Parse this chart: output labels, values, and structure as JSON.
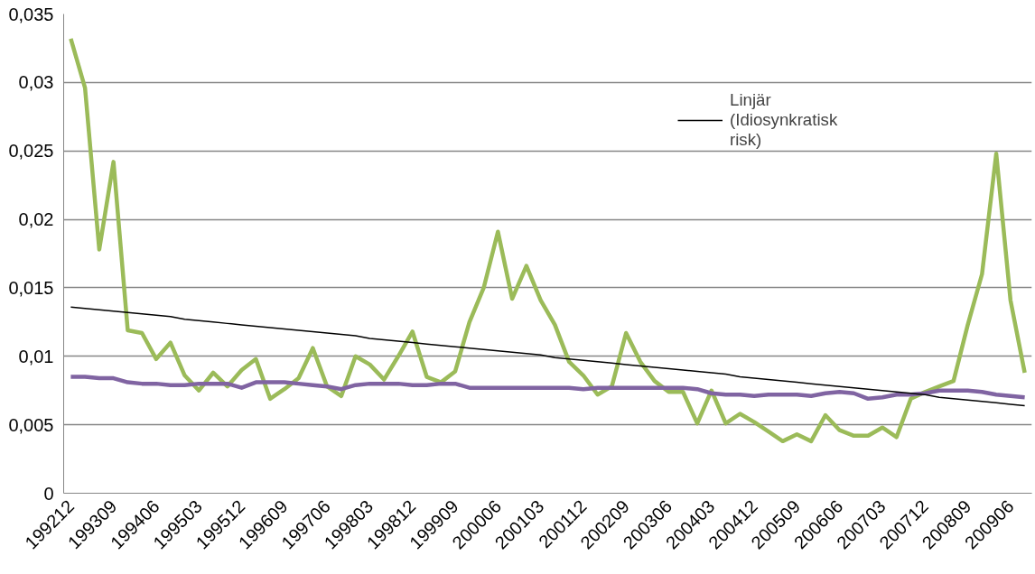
{
  "chart_data": {
    "type": "line",
    "categories": [
      "199212",
      null,
      null,
      "199309",
      null,
      null,
      "199406",
      null,
      null,
      "199503",
      null,
      null,
      "199512",
      null,
      null,
      "199609",
      null,
      null,
      "199706",
      null,
      null,
      "199803",
      null,
      null,
      "199812",
      null,
      null,
      "199909",
      null,
      null,
      "200006",
      null,
      null,
      "200103",
      null,
      null,
      "200112",
      null,
      null,
      "200209",
      null,
      null,
      "200306",
      null,
      null,
      "200403",
      null,
      null,
      "200412",
      null,
      null,
      "200509",
      null,
      null,
      "200606",
      null,
      null,
      "200703",
      null,
      null,
      "200712",
      null,
      null,
      "200809",
      null,
      null,
      "200906",
      null
    ],
    "series": [
      {
        "color": "#9bbb59",
        "values": [
          0.0332,
          0.0296,
          0.0178,
          0.0242,
          0.0119,
          0.0117,
          0.0098,
          0.011,
          0.0086,
          0.0075,
          0.0088,
          0.0078,
          0.009,
          0.0098,
          0.0069,
          0.0076,
          0.0084,
          0.0106,
          0.0078,
          0.0071,
          0.01,
          0.0094,
          0.0083,
          0.01,
          0.0118,
          0.0085,
          0.0081,
          0.0089,
          0.0125,
          0.015,
          0.0191,
          0.0142,
          0.0166,
          0.0141,
          0.0123,
          0.0096,
          0.0086,
          0.0072,
          0.0078,
          0.0117,
          0.0096,
          0.0082,
          0.0074,
          0.0074,
          0.0051,
          0.0075,
          0.0051,
          0.0058,
          0.0052,
          0.0045,
          0.0038,
          0.0043,
          0.0038,
          0.0057,
          0.0046,
          0.0042,
          0.0042,
          0.0048,
          0.0041,
          0.0069,
          0.0074,
          0.0078,
          0.0082,
          0.0123,
          0.016,
          0.0248,
          0.0141,
          0.0088
        ]
      },
      {
        "color": "#8064a2",
        "values": [
          0.0085,
          0.0085,
          0.0084,
          0.0084,
          0.0081,
          0.008,
          0.008,
          0.0079,
          0.0079,
          0.008,
          0.008,
          0.008,
          0.0077,
          0.0081,
          0.0081,
          0.0081,
          0.008,
          0.0079,
          0.0078,
          0.0076,
          0.0079,
          0.008,
          0.008,
          0.008,
          0.0079,
          0.0079,
          0.008,
          0.008,
          0.0077,
          0.0077,
          0.0077,
          0.0077,
          0.0077,
          0.0077,
          0.0077,
          0.0077,
          0.0076,
          0.0077,
          0.0077,
          0.0077,
          0.0077,
          0.0077,
          0.0077,
          0.0077,
          0.0076,
          0.0073,
          0.0072,
          0.0072,
          0.0071,
          0.0072,
          0.0072,
          0.0072,
          0.0071,
          0.0073,
          0.0074,
          0.0073,
          0.0069,
          0.007,
          0.0072,
          0.0072,
          0.0073,
          0.0075,
          0.0075,
          0.0075,
          0.0074,
          0.0072,
          0.0071,
          0.007
        ]
      },
      {
        "name": "Linjär (Idiosynkratisk risk)",
        "color": "#000000",
        "values": [
          0.0136,
          0.0135,
          0.0134,
          0.0133,
          0.0132,
          0.0131,
          0.013,
          0.0129,
          0.0127,
          0.0126,
          0.0125,
          0.0124,
          0.0123,
          0.0122,
          0.0121,
          0.012,
          0.0119,
          0.0118,
          0.0117,
          0.0116,
          0.0115,
          0.0113,
          0.0112,
          0.0111,
          0.011,
          0.0109,
          0.0108,
          0.0107,
          0.0106,
          0.0105,
          0.0104,
          0.0103,
          0.0102,
          0.0101,
          0.0099,
          0.0098,
          0.0097,
          0.0096,
          0.0095,
          0.0094,
          0.0093,
          0.0092,
          0.0091,
          0.009,
          0.0089,
          0.0088,
          0.0087,
          0.0085,
          0.0084,
          0.0083,
          0.0082,
          0.0081,
          0.008,
          0.0079,
          0.0078,
          0.0077,
          0.0076,
          0.0075,
          0.0074,
          0.0073,
          0.0072,
          0.007,
          0.0069,
          0.0068,
          0.0067,
          0.0066,
          0.0065,
          0.0064
        ]
      }
    ],
    "ylim": [
      0,
      0.035
    ],
    "yticks": [
      0,
      {
        "value": 0.005,
        "label": "0,005"
      },
      {
        "value": 0.01,
        "label": "0,01"
      },
      {
        "value": 0.015,
        "label": "0,015"
      },
      {
        "value": 0.02,
        "label": "0,02"
      },
      {
        "value": 0.025,
        "label": "0,025"
      },
      {
        "value": 0.03,
        "label": "0,03"
      },
      {
        "value": 0.035,
        "label": "0,035"
      }
    ],
    "grid": "y",
    "legend": "top right"
  }
}
